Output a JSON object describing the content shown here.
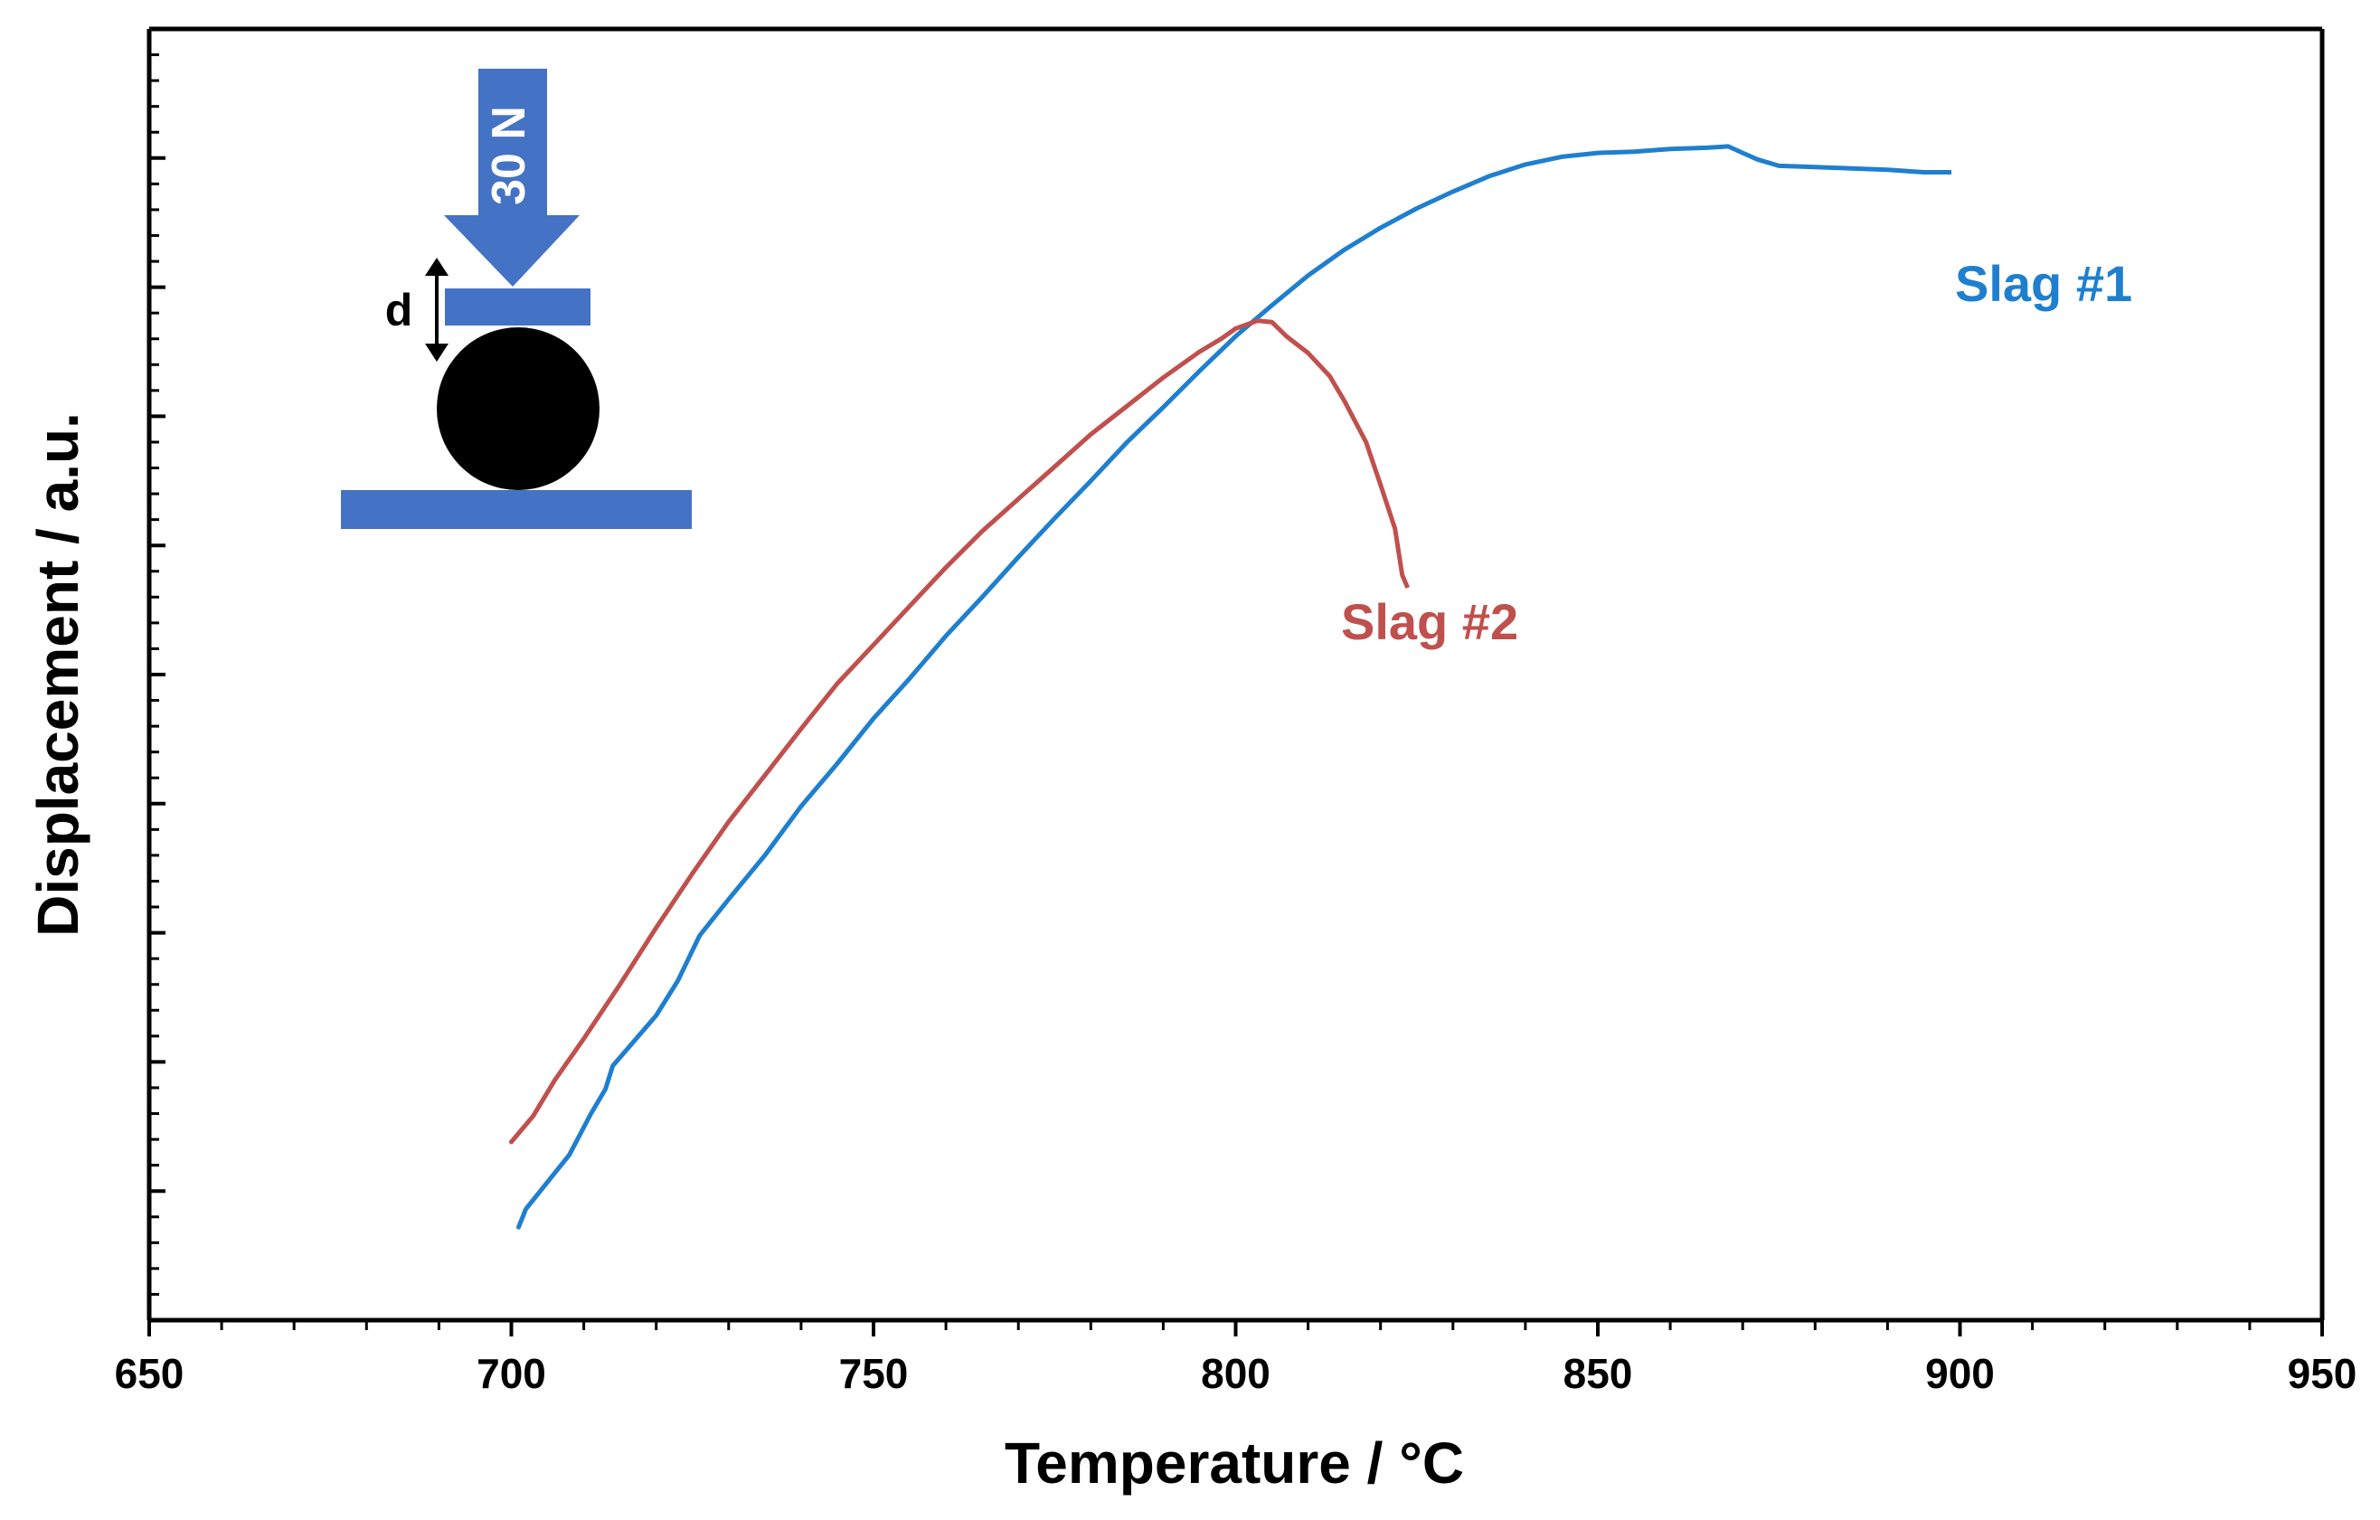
{
  "chart_data": {
    "type": "line",
    "title": "",
    "xlabel": "Temperature / °C",
    "ylabel": "Displacement / a.u.",
    "xlim": [
      650,
      950
    ],
    "ylim": [
      0,
      1
    ],
    "xticks": [
      650,
      700,
      750,
      800,
      850,
      900,
      950
    ],
    "grid": false,
    "series": [
      {
        "name": "Slag #1",
        "color": "#1F7FCF",
        "x": [
          701,
          702,
          705,
          708,
          711,
          713,
          714,
          716,
          720,
          723,
          726,
          730,
          735,
          740,
          745,
          750,
          755,
          760,
          765,
          770,
          775,
          780,
          785,
          790,
          795,
          800,
          805,
          810,
          815,
          820,
          825,
          830,
          835,
          840,
          845,
          850,
          855,
          860,
          865,
          868,
          870,
          872,
          875,
          880,
          885,
          890,
          895,
          898
        ],
        "values": [
          0.072,
          0.086,
          0.107,
          0.128,
          0.16,
          0.179,
          0.197,
          0.21,
          0.236,
          0.263,
          0.298,
          0.326,
          0.36,
          0.398,
          0.431,
          0.466,
          0.497,
          0.53,
          0.56,
          0.591,
          0.621,
          0.65,
          0.68,
          0.707,
          0.735,
          0.762,
          0.786,
          0.809,
          0.829,
          0.846,
          0.861,
          0.874,
          0.886,
          0.895,
          0.901,
          0.904,
          0.905,
          0.907,
          0.908,
          0.909,
          0.904,
          0.899,
          0.894,
          0.893,
          0.892,
          0.891,
          0.889,
          0.889
        ]
      },
      {
        "name": "Slag #2",
        "color": "#C0504D",
        "x": [
          700,
          703,
          706,
          710,
          715,
          720,
          725,
          730,
          735,
          740,
          745,
          750,
          755,
          760,
          765,
          770,
          775,
          780,
          785,
          790,
          795,
          798,
          800,
          803,
          805,
          807,
          810,
          813,
          815,
          818,
          820,
          822,
          823
        ],
        "values": [
          0.138,
          0.158,
          0.186,
          0.218,
          0.26,
          0.304,
          0.346,
          0.386,
          0.422,
          0.458,
          0.493,
          0.523,
          0.553,
          0.583,
          0.611,
          0.636,
          0.661,
          0.686,
          0.708,
          0.73,
          0.75,
          0.76,
          0.768,
          0.774,
          0.773,
          0.762,
          0.749,
          0.731,
          0.712,
          0.68,
          0.647,
          0.613,
          0.577
        ]
      }
    ],
    "annotations": [
      {
        "text": "Slag #1",
        "color": "#1F7FCF"
      },
      {
        "text": "Slag #2",
        "color": "#C0504D"
      }
    ]
  },
  "inset": {
    "force_label": "30 N",
    "distance_label": "d",
    "accent_color": "#4472C4"
  }
}
